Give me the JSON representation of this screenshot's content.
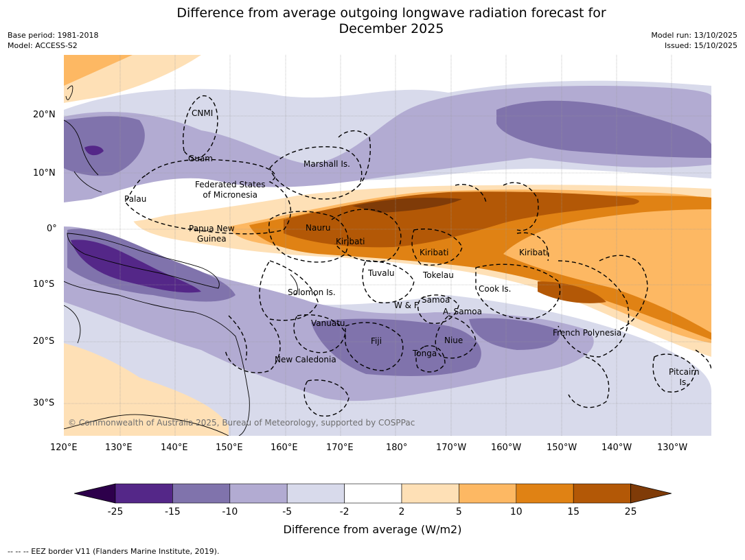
{
  "title_line1": "Difference from average outgoing longwave radiation forecast for",
  "title_line2": "December 2025",
  "base_period": "Base period: 1981-2018",
  "model": "Model: ACCESS-S2",
  "model_run": "Model run: 13/10/2025",
  "issued": "Issued: 15/10/2025",
  "lat_ticks": [
    "20°N",
    "10°N",
    "0°",
    "10°S",
    "20°S",
    "30°S"
  ],
  "lon_ticks": [
    "120°E",
    "130°E",
    "140°E",
    "150°E",
    "160°E",
    "170°E",
    "180°",
    "170°W",
    "160°W",
    "150°W",
    "140°W",
    "130°W"
  ],
  "region_labels": {
    "cnmi": "CNMI",
    "guam": "Guam",
    "marshall": "Marshall Is.",
    "fsm_line1": "Federated States",
    "fsm_line2": "of Micronesia",
    "palau": "Palau",
    "png_line1": "Papua New",
    "png_line2": "Guinea",
    "nauru": "Nauru",
    "kiribati_w": "Kiribati",
    "kiribati_c": "Kiribati",
    "kiribati_e": "Kiribati",
    "tuvalu": "Tuvalu",
    "tokelau": "Tokelau",
    "cook": "Cook Is.",
    "solomon": "Solomon Is.",
    "wf": "W & F",
    "samoa": "Samoa",
    "asamoa": "A. Samoa",
    "vanuatu": "Vanuatu",
    "fiji": "Fiji",
    "niue": "Niue",
    "tonga": "Tonga",
    "newcal": "New Caledonia",
    "frpoly": "French Polynesia",
    "pitcairn_line1": "Pitcairn",
    "pitcairn_line2": "Is."
  },
  "copyright": "© Commonwealth of Australia 2025, Bureau of Meteorology, supported by COSPPac",
  "colorbar": {
    "ticks": [
      "-25",
      "-15",
      "-10",
      "-5",
      "-2",
      "2",
      "5",
      "10",
      "15",
      "25"
    ],
    "colors": [
      "#2d004b",
      "#542788",
      "#8073ac",
      "#b2abd2",
      "#d8daeb",
      "#ffffff",
      "#fee0b6",
      "#fdb863",
      "#e08214",
      "#b35806",
      "#7f3b08"
    ],
    "label": "Difference from average (W/m2)"
  },
  "footer": "--  --  -- EEZ border V11 (Flanders Marine Institute, 2019)."
}
